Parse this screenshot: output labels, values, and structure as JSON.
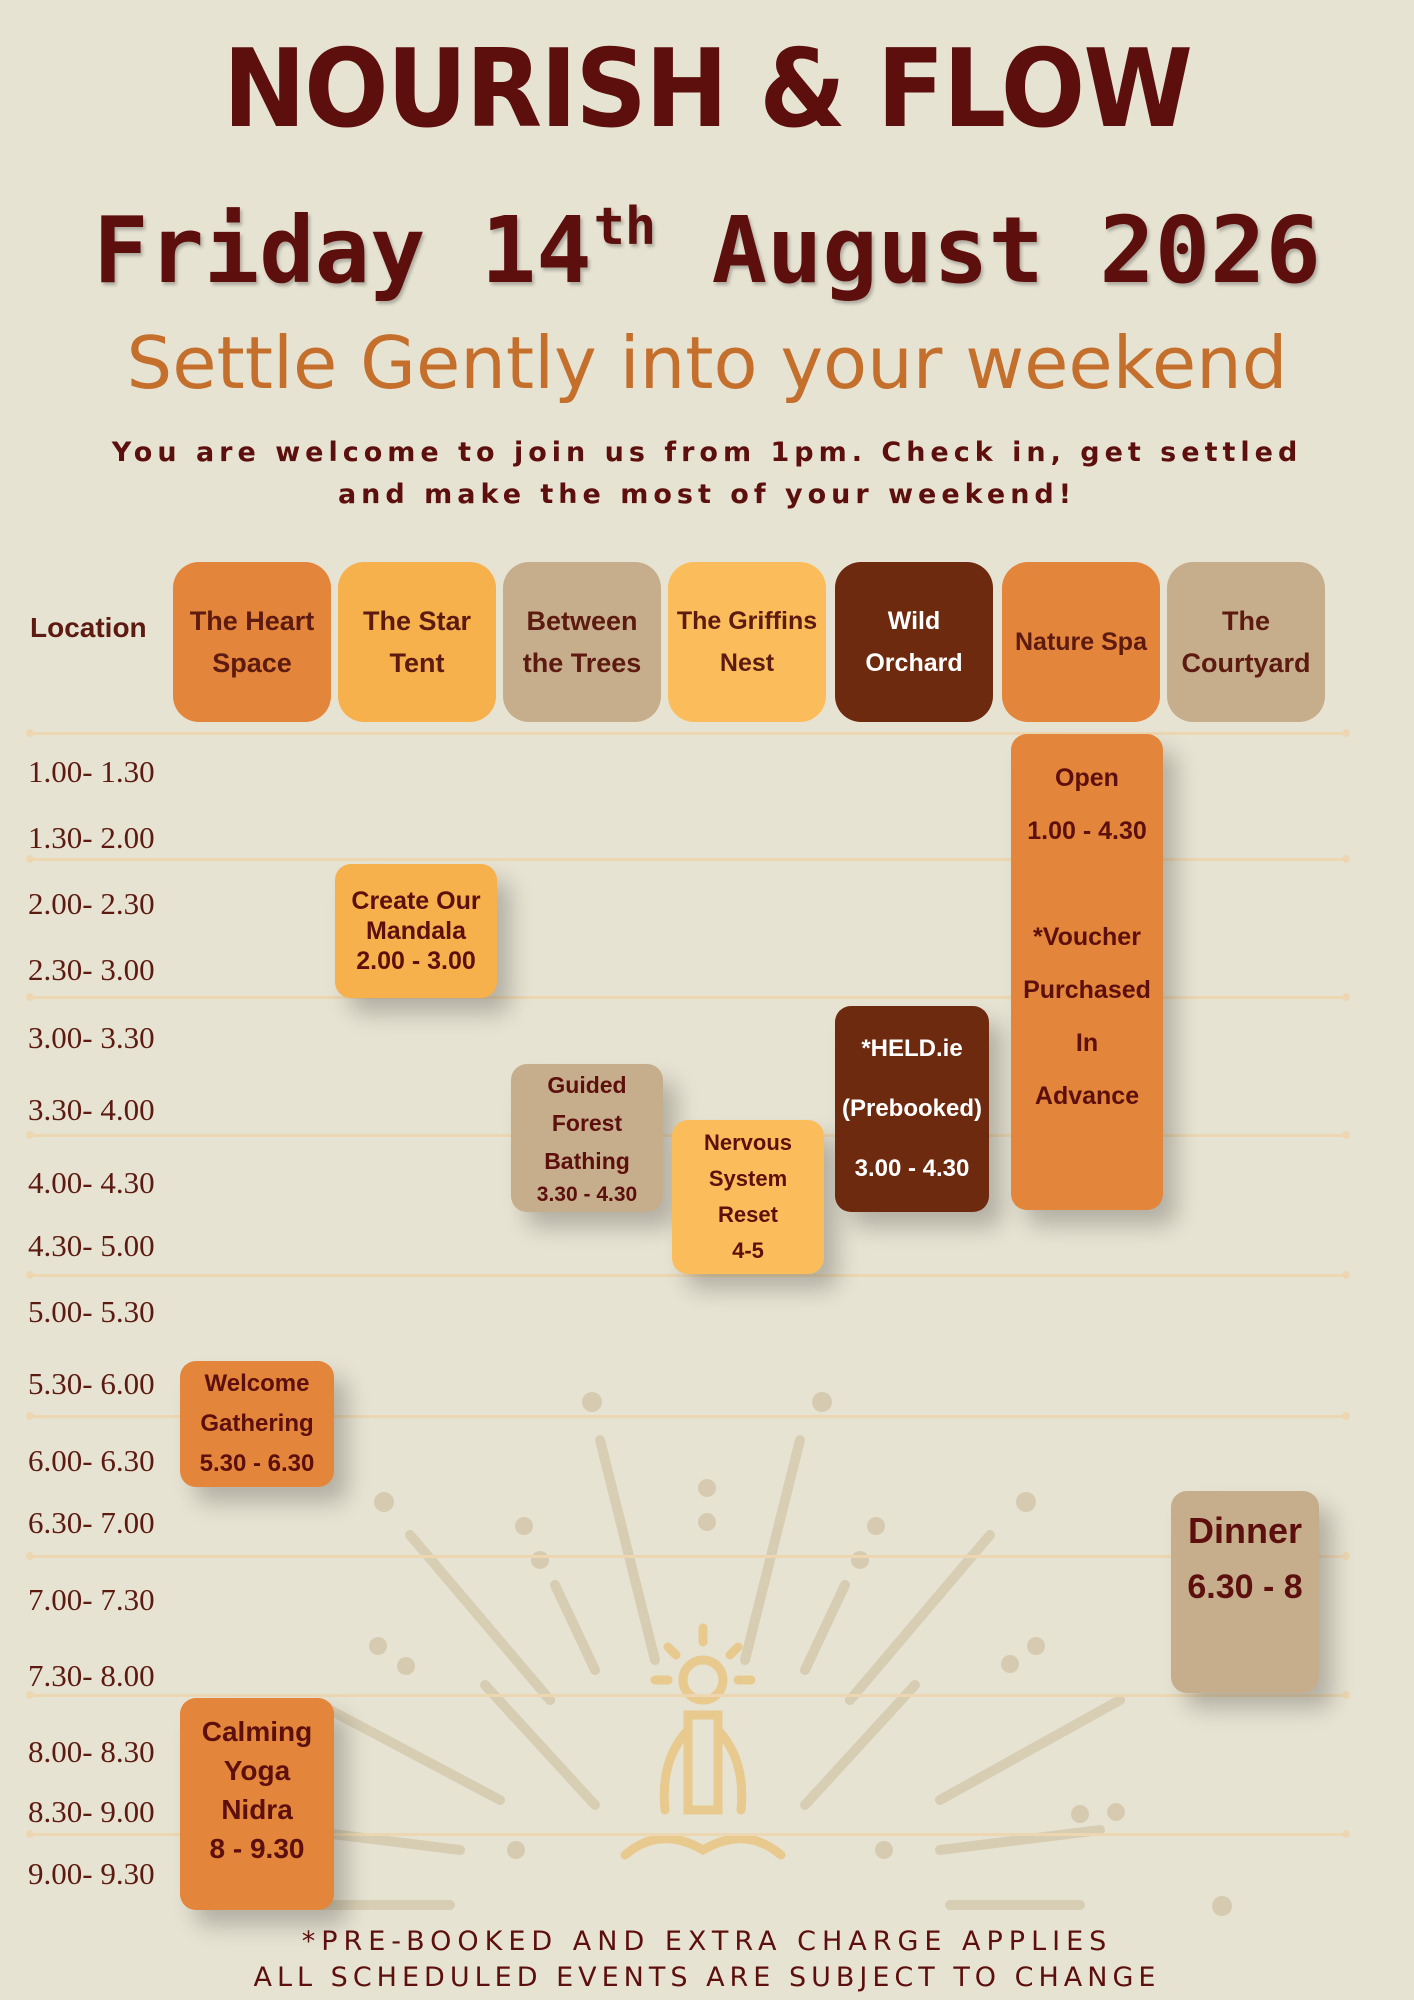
{
  "header": {
    "brand": "NOURISH & FLOW",
    "date_pre": "Friday 14",
    "date_sup": "th",
    "date_post": " August 2026",
    "subtitle": "Settle Gently into your weekend",
    "intro_line1": "You are welcome to join us from 1pm. Check in, get settled",
    "intro_line2": "and make the most of your weekend!"
  },
  "location_label": "Location",
  "locations": [
    {
      "name": "The Heart Space",
      "color": "#e3853a"
    },
    {
      "name": "The Star Tent",
      "color": "#f6b04c"
    },
    {
      "name": "Between the Trees",
      "color": "#c6ae8c"
    },
    {
      "name": "The Griffins Nest",
      "color": "#fbbd5b"
    },
    {
      "name": "Wild Orchard",
      "color": "#6e2a0e",
      "text_color": "#ffffff"
    },
    {
      "name": "Nature Spa",
      "color": "#e3853a"
    },
    {
      "name": "The Courtyard",
      "color": "#c6ae8c"
    }
  ],
  "times": [
    "1.00- 1.30",
    "1.30- 2.00",
    "2.00- 2.30",
    "2.30- 3.00",
    "3.00- 3.30",
    "3.30- 4.00",
    "4.00- 4.30",
    "4.30- 5.00",
    "5.00- 5.30",
    "5.30- 6.00",
    "6.00- 6.30",
    "6.30- 7.00",
    "7.00- 7.30",
    "7.30- 8.00",
    "8.00- 8.30",
    "8.30- 9.00",
    "9.00- 9.30"
  ],
  "events": {
    "mandala": {
      "line1": "Create Our",
      "line2": "Mandala",
      "time": "2.00 - 3.00"
    },
    "forest": {
      "line1": "Guided",
      "line2": "Forest",
      "line3": "Bathing",
      "time": "3.30 - 4.30"
    },
    "nervous": {
      "line1": "Nervous",
      "line2": "System",
      "line3": "Reset",
      "time": "4-5"
    },
    "held": {
      "line1": "*HELD.ie",
      "line2": "(Prebooked)",
      "time": "3.00 - 4.30"
    },
    "spa": {
      "line1": "Open",
      "time": "1.00 - 4.30",
      "line2": "*Voucher",
      "line3": "Purchased",
      "line4": "In",
      "line5": "Advance"
    },
    "welcome": {
      "line1": "Welcome",
      "line2": "Gathering",
      "time": "5.30 - 6.30"
    },
    "dinner": {
      "line1": "Dinner",
      "time": "6.30 - 8"
    },
    "yoga": {
      "line1": "Calming",
      "line2": "Yoga",
      "line3": "Nidra",
      "time": "8 - 9.30"
    }
  },
  "footer": {
    "line1": "*PRE-BOOKED AND EXTRA CHARGE APPLIES",
    "line2": "ALL SCHEDULED EVENTS ARE SUBJECT TO CHANGE"
  }
}
